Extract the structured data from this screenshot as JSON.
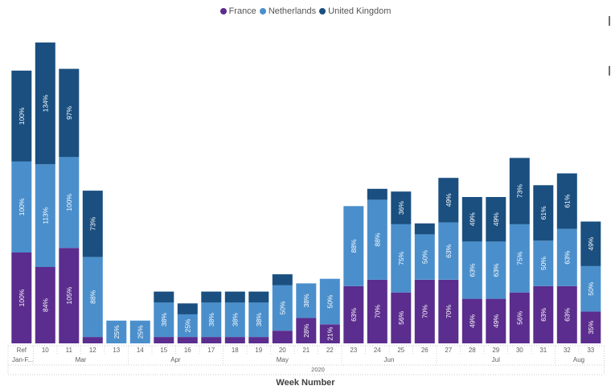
{
  "legend": [
    {
      "label": "France",
      "color": "#5b2d8e"
    },
    {
      "label": "Netherlands",
      "color": "#4a8fcc"
    },
    {
      "label": "United Kingdom",
      "color": "#1a4f80"
    }
  ],
  "chart_data": {
    "type": "bar",
    "stacked": true,
    "xlabel": "Week Number",
    "year_label": "2020",
    "categories": [
      "Ref",
      "10",
      "11",
      "12",
      "13",
      "14",
      "15",
      "16",
      "17",
      "18",
      "19",
      "20",
      "21",
      "22",
      "23",
      "24",
      "25",
      "26",
      "27",
      "28",
      "29",
      "30",
      "31",
      "32",
      "33"
    ],
    "category_sublabels": [
      {
        "index": 0,
        "text": "Jan-F..."
      }
    ],
    "month_groups": [
      {
        "label": "Mar",
        "from": 1,
        "to": 4
      },
      {
        "label": "Apr",
        "from": 5,
        "to": 8
      },
      {
        "label": "May",
        "from": 9,
        "to": 13
      },
      {
        "label": "Jun",
        "from": 14,
        "to": 17
      },
      {
        "label": "Jul",
        "from": 18,
        "to": 22
      },
      {
        "label": "Aug",
        "from": 23,
        "to": 24
      }
    ],
    "series": [
      {
        "name": "France",
        "color": "#5b2d8e",
        "values": [
          100,
          84,
          105,
          7,
          0,
          0,
          7,
          7,
          7,
          7,
          7,
          14,
          28,
          21,
          63,
          70,
          56,
          70,
          70,
          49,
          49,
          56,
          63,
          63,
          35
        ],
        "labels": [
          "100%",
          "84%",
          "105%",
          "",
          "",
          "",
          "",
          "",
          "",
          "",
          "",
          "",
          "28%",
          "21%",
          "63%",
          "70%",
          "56%",
          "70%",
          "70%",
          "49%",
          "49%",
          "56%",
          "63%",
          "63%",
          "35%"
        ]
      },
      {
        "name": "Netherlands",
        "color": "#4a8fcc",
        "values": [
          100,
          113,
          100,
          88,
          25,
          25,
          38,
          25,
          38,
          38,
          38,
          50,
          38,
          50,
          88,
          88,
          75,
          50,
          63,
          63,
          63,
          75,
          50,
          63,
          50
        ],
        "labels": [
          "100%",
          "113%",
          "100%",
          "88%",
          "25%",
          "25%",
          "38%",
          "25%",
          "38%",
          "38%",
          "38%",
          "50%",
          "38%",
          "50%",
          "88%",
          "88%",
          "75%",
          "50%",
          "63%",
          "63%",
          "63%",
          "75%",
          "50%",
          "63%",
          "50%"
        ]
      },
      {
        "name": "United Kingdom",
        "color": "#1a4f80",
        "values": [
          100,
          134,
          97,
          73,
          0,
          0,
          12,
          12,
          12,
          12,
          12,
          12,
          0,
          0,
          0,
          12,
          36,
          12,
          49,
          49,
          49,
          73,
          61,
          61,
          49
        ],
        "labels": [
          "100%",
          "134%",
          "97%",
          "73%",
          "",
          "",
          "",
          "",
          "",
          "",
          "",
          "",
          "",
          "",
          "",
          "",
          "36%",
          "",
          "49%",
          "49%",
          "49%",
          "73%",
          "61%",
          "61%",
          "49%"
        ]
      }
    ]
  }
}
